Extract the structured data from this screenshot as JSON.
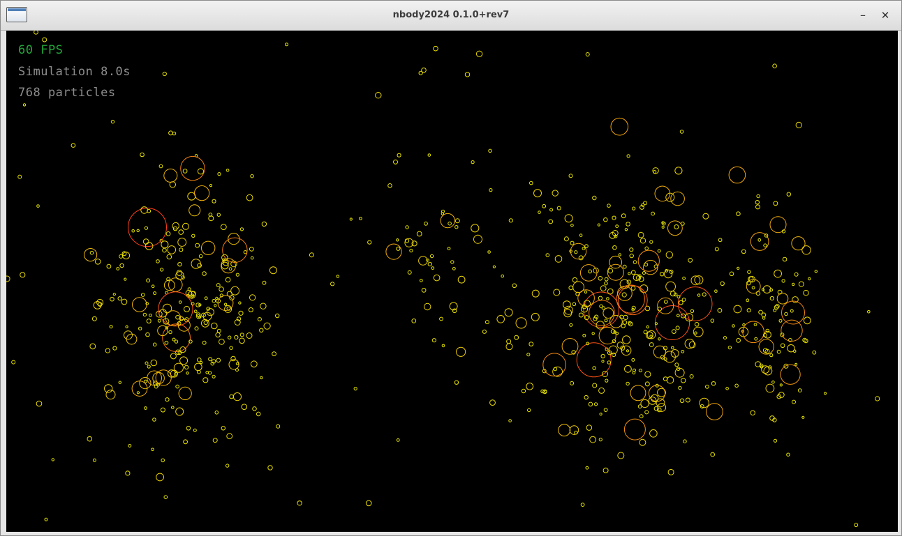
{
  "window": {
    "title": "nbody2024 0.1.0+rev7",
    "app_icon": "window-icon",
    "minimize_glyph": "–",
    "close_glyph": "✕"
  },
  "hud": {
    "fps": "60 FPS",
    "simulation_time": "Simulation 8.0s",
    "particles": "768 particles",
    "fps_color": "#22a83a",
    "label_color": "#8d8d8d"
  },
  "scene": {
    "background": "#000000",
    "particle_color_small": "#e8e800",
    "particle_color_large": "#ff3a1a",
    "particle_count": 768
  }
}
